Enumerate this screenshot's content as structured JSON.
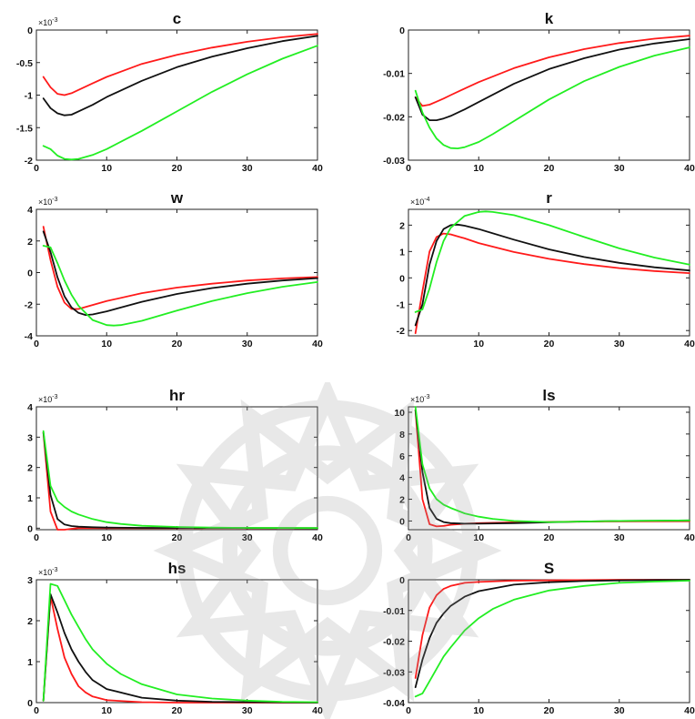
{
  "colors": {
    "red": "#ff1a1a",
    "black": "#111111",
    "green": "#22ee22"
  },
  "chart_data": [
    {
      "type": "line",
      "title": "c",
      "exponent": "-3",
      "xlim": [
        0,
        40
      ],
      "ylim": [
        -2,
        0
      ],
      "xticks": [
        "0",
        "10",
        "20",
        "30",
        "40"
      ],
      "yticks": [
        "0",
        "-0.5",
        "-1",
        "-1.5",
        "-2"
      ],
      "ytick_values": [
        0,
        -0.5,
        -1,
        -1.5,
        -2
      ],
      "series": [
        {
          "color": "red",
          "x": [
            1,
            2,
            3,
            4,
            5,
            6,
            8,
            10,
            15,
            20,
            25,
            30,
            35,
            40
          ],
          "y": [
            -0.72,
            -0.88,
            -0.98,
            -1.0,
            -0.97,
            -0.92,
            -0.82,
            -0.72,
            -0.52,
            -0.38,
            -0.27,
            -0.18,
            -0.11,
            -0.06
          ]
        },
        {
          "color": "black",
          "x": [
            1,
            2,
            3,
            4,
            5,
            6,
            8,
            10,
            15,
            20,
            25,
            30,
            35,
            40
          ],
          "y": [
            -1.05,
            -1.2,
            -1.28,
            -1.31,
            -1.3,
            -1.25,
            -1.15,
            -1.03,
            -0.78,
            -0.57,
            -0.41,
            -0.28,
            -0.17,
            -0.09
          ]
        },
        {
          "color": "green",
          "x": [
            1,
            2,
            3,
            4,
            5,
            6,
            8,
            10,
            15,
            20,
            25,
            30,
            35,
            40
          ],
          "y": [
            -1.78,
            -1.83,
            -1.93,
            -1.98,
            -1.99,
            -1.98,
            -1.92,
            -1.83,
            -1.55,
            -1.25,
            -0.95,
            -0.68,
            -0.44,
            -0.24
          ]
        }
      ]
    },
    {
      "type": "line",
      "title": "k",
      "exponent": "",
      "xlim": [
        0,
        40
      ],
      "ylim": [
        -0.03,
        0
      ],
      "xticks": [
        "0",
        "10",
        "20",
        "30",
        "40"
      ],
      "yticks": [
        "0",
        "-0.01",
        "-0.02",
        "-0.03"
      ],
      "ytick_values": [
        0,
        -0.01,
        -0.02,
        -0.03
      ],
      "series": [
        {
          "color": "red",
          "x": [
            1,
            2,
            3,
            4,
            5,
            6,
            8,
            10,
            15,
            20,
            25,
            30,
            35,
            40
          ],
          "y": [
            -0.0155,
            -0.0175,
            -0.0172,
            -0.0165,
            -0.0158,
            -0.015,
            -0.0135,
            -0.012,
            -0.0088,
            -0.0063,
            -0.0044,
            -0.003,
            -0.002,
            -0.0013
          ]
        },
        {
          "color": "black",
          "x": [
            1,
            2,
            3,
            4,
            5,
            6,
            8,
            10,
            15,
            20,
            25,
            30,
            35,
            40
          ],
          "y": [
            -0.0155,
            -0.0195,
            -0.0208,
            -0.0208,
            -0.0204,
            -0.0198,
            -0.0183,
            -0.0166,
            -0.0124,
            -0.009,
            -0.0065,
            -0.0045,
            -0.0031,
            -0.0021
          ]
        },
        {
          "color": "green",
          "x": [
            1,
            2,
            3,
            4,
            5,
            6,
            7,
            8,
            10,
            12,
            15,
            20,
            25,
            30,
            35,
            40
          ],
          "y": [
            -0.014,
            -0.019,
            -0.0225,
            -0.025,
            -0.0265,
            -0.0272,
            -0.0273,
            -0.027,
            -0.0258,
            -0.024,
            -0.021,
            -0.016,
            -0.0118,
            -0.0085,
            -0.0059,
            -0.004
          ]
        }
      ]
    },
    {
      "type": "line",
      "title": "w",
      "exponent": "-3",
      "xlim": [
        0,
        40
      ],
      "ylim": [
        -4,
        4
      ],
      "xticks": [
        "0",
        "10",
        "20",
        "30",
        "40"
      ],
      "yticks": [
        "4",
        "2",
        "0",
        "-2",
        "-4"
      ],
      "ytick_values": [
        4,
        2,
        0,
        -2,
        -4
      ],
      "series": [
        {
          "color": "red",
          "x": [
            1,
            2,
            3,
            4,
            5,
            6,
            8,
            10,
            15,
            20,
            25,
            30,
            35,
            40
          ],
          "y": [
            2.9,
            0.8,
            -0.9,
            -1.9,
            -2.3,
            -2.3,
            -2.05,
            -1.8,
            -1.3,
            -0.95,
            -0.7,
            -0.5,
            -0.37,
            -0.28
          ]
        },
        {
          "color": "black",
          "x": [
            1,
            2,
            3,
            4,
            5,
            6,
            7,
            8,
            10,
            15,
            20,
            25,
            30,
            35,
            40
          ],
          "y": [
            2.6,
            1.3,
            -0.3,
            -1.5,
            -2.2,
            -2.55,
            -2.68,
            -2.65,
            -2.45,
            -1.85,
            -1.35,
            -0.98,
            -0.7,
            -0.5,
            -0.35
          ]
        },
        {
          "color": "green",
          "x": [
            1,
            2,
            3,
            4,
            5,
            6,
            8,
            10,
            11,
            12,
            15,
            20,
            25,
            30,
            35,
            40
          ],
          "y": [
            1.7,
            1.6,
            0.6,
            -0.5,
            -1.4,
            -2.1,
            -3.0,
            -3.32,
            -3.35,
            -3.32,
            -3.05,
            -2.4,
            -1.8,
            -1.3,
            -0.9,
            -0.6
          ]
        }
      ]
    },
    {
      "type": "line",
      "title": "r",
      "exponent": "-4",
      "xlim": [
        0,
        40
      ],
      "ylim": [
        -2.2,
        2.6
      ],
      "xticks": [
        "10",
        "20",
        "30",
        "40"
      ],
      "yticks": [
        "2",
        "1",
        "0",
        "-1",
        "-2"
      ],
      "ytick_values": [
        2,
        1,
        0,
        -1,
        -2
      ],
      "series": [
        {
          "color": "red",
          "x": [
            1,
            2,
            3,
            4,
            5,
            6,
            8,
            10,
            15,
            20,
            25,
            30,
            35,
            40
          ],
          "y": [
            -2.1,
            -0.5,
            1.0,
            1.55,
            1.68,
            1.65,
            1.5,
            1.32,
            0.98,
            0.72,
            0.52,
            0.37,
            0.26,
            0.18
          ]
        },
        {
          "color": "black",
          "x": [
            1,
            2,
            3,
            4,
            5,
            6,
            7,
            8,
            10,
            15,
            20,
            25,
            30,
            35,
            40
          ],
          "y": [
            -1.8,
            -1.0,
            0.5,
            1.4,
            1.85,
            2.0,
            2.02,
            1.98,
            1.85,
            1.45,
            1.08,
            0.79,
            0.57,
            0.4,
            0.28
          ]
        },
        {
          "color": "green",
          "x": [
            1,
            2,
            3,
            4,
            5,
            6,
            8,
            10,
            11,
            12,
            15,
            20,
            25,
            30,
            35,
            40
          ],
          "y": [
            -1.3,
            -1.2,
            -0.4,
            0.6,
            1.4,
            1.9,
            2.35,
            2.5,
            2.52,
            2.5,
            2.38,
            2.0,
            1.55,
            1.12,
            0.77,
            0.5
          ]
        }
      ]
    },
    {
      "type": "line",
      "title": "hr",
      "exponent": "-3",
      "xlim": [
        0,
        40
      ],
      "ylim": [
        -0.05,
        4
      ],
      "xticks": [
        "0",
        "10",
        "20",
        "30",
        "40"
      ],
      "yticks": [
        "4",
        "3",
        "2",
        "1",
        "0"
      ],
      "ytick_values": [
        4,
        3,
        2,
        1,
        0
      ],
      "series": [
        {
          "color": "red",
          "x": [
            1,
            2,
            3,
            4,
            5,
            6,
            8,
            40
          ],
          "y": [
            3.15,
            0.55,
            -0.05,
            -0.05,
            -0.02,
            0,
            0,
            0
          ]
        },
        {
          "color": "black",
          "x": [
            1,
            2,
            3,
            4,
            5,
            6,
            8,
            10,
            15,
            40
          ],
          "y": [
            3.15,
            1.1,
            0.3,
            0.12,
            0.07,
            0.05,
            0.03,
            0.02,
            0.01,
            0
          ]
        },
        {
          "color": "green",
          "x": [
            1,
            2,
            3,
            4,
            5,
            6,
            8,
            10,
            12,
            15,
            20,
            25,
            30,
            40
          ],
          "y": [
            3.2,
            1.4,
            0.9,
            0.7,
            0.55,
            0.45,
            0.3,
            0.2,
            0.14,
            0.08,
            0.04,
            0.02,
            0.01,
            0.005
          ]
        }
      ]
    },
    {
      "type": "line",
      "title": "ls",
      "exponent": "-3",
      "xlim": [
        0,
        40
      ],
      "ylim": [
        -0.8,
        10.5
      ],
      "xticks": [
        "0",
        "10",
        "20",
        "30",
        "40"
      ],
      "yticks": [
        "10",
        "8",
        "6",
        "4",
        "2",
        "0"
      ],
      "ytick_values": [
        10,
        8,
        6,
        4,
        2,
        0
      ],
      "series": [
        {
          "color": "red",
          "x": [
            1,
            2,
            3,
            4,
            5,
            6,
            8,
            10,
            15,
            20,
            30,
            40
          ],
          "y": [
            10.2,
            2.0,
            -0.3,
            -0.5,
            -0.45,
            -0.35,
            -0.25,
            -0.2,
            -0.12,
            -0.08,
            -0.04,
            -0.02
          ]
        },
        {
          "color": "black",
          "x": [
            1,
            2,
            3,
            4,
            5,
            6,
            8,
            10,
            15,
            20,
            25,
            30,
            35,
            40
          ],
          "y": [
            10.2,
            4.5,
            1.2,
            0.2,
            -0.1,
            -0.2,
            -0.25,
            -0.25,
            -0.2,
            -0.12,
            -0.05,
            0.0,
            0.03,
            0.05
          ]
        },
        {
          "color": "green",
          "x": [
            1,
            2,
            3,
            4,
            5,
            6,
            8,
            10,
            12,
            15,
            20,
            25,
            30,
            35,
            40
          ],
          "y": [
            10.5,
            5.2,
            3.0,
            2.0,
            1.5,
            1.2,
            0.7,
            0.4,
            0.2,
            0.0,
            -0.1,
            -0.05,
            0.0,
            0.03,
            0.05
          ]
        }
      ]
    },
    {
      "type": "line",
      "title": "hs",
      "exponent": "-3",
      "xlim": [
        0,
        40
      ],
      "ylim": [
        0,
        3
      ],
      "xticks": [
        "0",
        "10",
        "20",
        "30",
        "40"
      ],
      "yticks": [
        "3",
        "2",
        "1",
        "0"
      ],
      "ytick_values": [
        3,
        2,
        1,
        0
      ],
      "series": [
        {
          "color": "red",
          "x": [
            1,
            2,
            3,
            4,
            5,
            6,
            7,
            8,
            10,
            15,
            20,
            30,
            40
          ],
          "y": [
            0.05,
            2.6,
            1.8,
            1.1,
            0.7,
            0.4,
            0.25,
            0.15,
            0.06,
            0.01,
            0,
            0,
            0
          ]
        },
        {
          "color": "black",
          "x": [
            1,
            2,
            3,
            4,
            5,
            6,
            7,
            8,
            10,
            15,
            20,
            25,
            30,
            40
          ],
          "y": [
            0.05,
            2.65,
            2.2,
            1.7,
            1.3,
            1.0,
            0.75,
            0.55,
            0.33,
            0.12,
            0.05,
            0.02,
            0.01,
            0
          ]
        },
        {
          "color": "green",
          "x": [
            1,
            2,
            3,
            4,
            5,
            6,
            7,
            8,
            10,
            12,
            15,
            20,
            25,
            30,
            35,
            40
          ],
          "y": [
            0.05,
            2.9,
            2.85,
            2.5,
            2.15,
            1.85,
            1.55,
            1.3,
            0.95,
            0.7,
            0.45,
            0.2,
            0.1,
            0.05,
            0.02,
            0.01
          ]
        }
      ]
    },
    {
      "type": "line",
      "title": "S",
      "exponent": "",
      "xlim": [
        0,
        40
      ],
      "ylim": [
        -0.04,
        0
      ],
      "xticks": [
        "0",
        "10",
        "20",
        "30",
        "40"
      ],
      "yticks": [
        "0",
        "-0.01",
        "-0.02",
        "-0.03",
        "-0.04"
      ],
      "ytick_values": [
        0,
        -0.01,
        -0.02,
        -0.03,
        -0.04
      ],
      "series": [
        {
          "color": "red",
          "x": [
            1,
            2,
            3,
            4,
            5,
            6,
            8,
            10,
            15,
            20,
            30,
            40
          ],
          "y": [
            -0.032,
            -0.018,
            -0.009,
            -0.005,
            -0.003,
            -0.002,
            -0.001,
            -0.0007,
            -0.0003,
            -0.0002,
            0,
            0
          ]
        },
        {
          "color": "black",
          "x": [
            1,
            2,
            3,
            4,
            5,
            6,
            8,
            10,
            15,
            20,
            25,
            30,
            35,
            40
          ],
          "y": [
            -0.035,
            -0.026,
            -0.019,
            -0.014,
            -0.011,
            -0.0085,
            -0.0055,
            -0.0037,
            -0.0016,
            -0.0008,
            -0.0004,
            -0.0002,
            -0.0001,
            0
          ]
        },
        {
          "color": "green",
          "x": [
            1,
            2,
            3,
            4,
            5,
            6,
            8,
            10,
            12,
            15,
            20,
            25,
            30,
            35,
            40
          ],
          "y": [
            -0.038,
            -0.037,
            -0.033,
            -0.029,
            -0.025,
            -0.022,
            -0.0165,
            -0.0125,
            -0.0095,
            -0.0065,
            -0.0035,
            -0.002,
            -0.001,
            -0.0006,
            -0.0003
          ]
        }
      ]
    }
  ]
}
